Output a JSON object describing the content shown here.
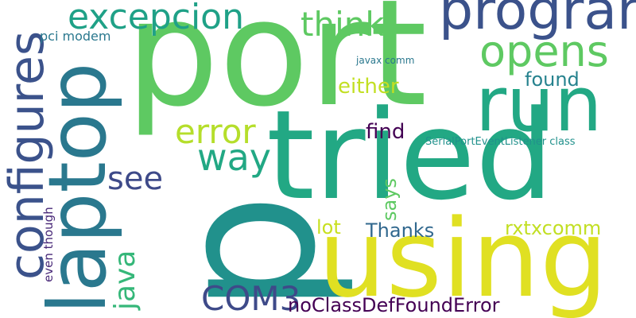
{
  "background": "#ffffff",
  "words": {
    "p": {
      "text": "p",
      "color": "#21918c"
    },
    "port": {
      "text": "port",
      "color": "#5ec962"
    },
    "tried": {
      "text": "tried",
      "color": "#22a884"
    },
    "using": {
      "text": "using",
      "color": "#e0e022"
    },
    "laptop": {
      "text": "laptop",
      "color": "#2a788e"
    },
    "run": {
      "text": "run",
      "color": "#22a884"
    },
    "program": {
      "text": "program",
      "color": "#3b528b"
    },
    "configures": {
      "text": "configures",
      "color": "#3b528b"
    },
    "excepcion": {
      "text": "excepcion",
      "color": "#1fa187"
    },
    "opens": {
      "text": "opens",
      "color": "#5ec962"
    },
    "think": {
      "text": "think",
      "color": "#5ec962"
    },
    "error": {
      "text": "error",
      "color": "#b5de2b"
    },
    "way": {
      "text": "way",
      "color": "#22a884"
    },
    "see": {
      "text": "see",
      "color": "#3e4a89"
    },
    "com3": {
      "text": "COM3",
      "color": "#3e4a89"
    },
    "java": {
      "text": "java",
      "color": "#35b779"
    },
    "noclass": {
      "text": "noClassDefFoundError",
      "color": "#440154"
    },
    "either": {
      "text": "either",
      "color": "#c2df23"
    },
    "found": {
      "text": "found",
      "color": "#26828e"
    },
    "find": {
      "text": "find",
      "color": "#440154"
    },
    "says": {
      "text": "says",
      "color": "#5ec962"
    },
    "lot": {
      "text": "lot",
      "color": "#c8e020"
    },
    "thanks": {
      "text": "Thanks",
      "color": "#31688e"
    },
    "rxtxcomm": {
      "text": "rxtxcomm",
      "color": "#c2df23"
    },
    "pcimodem": {
      "text": "pci modem",
      "color": "#2a788e"
    },
    "javaxcomm": {
      "text": "javax comm",
      "color": "#2a788e"
    },
    "serialport": {
      "text": "SerialPortEventListener class",
      "color": "#21918c"
    },
    "eventhough": {
      "text": "even though",
      "color": "#482878"
    }
  }
}
